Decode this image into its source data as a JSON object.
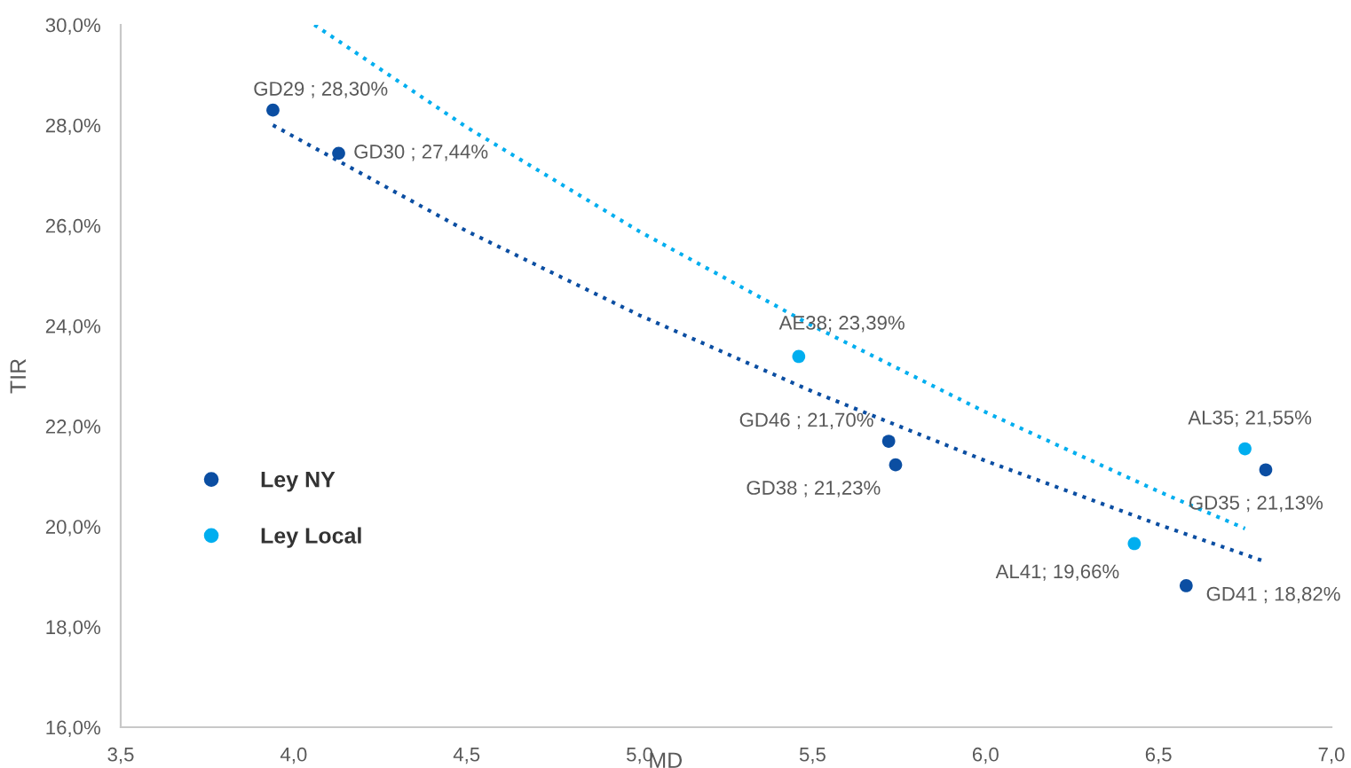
{
  "chart_data": {
    "type": "scatter",
    "xlabel": "MD",
    "ylabel": "TIR",
    "xlim": [
      3.5,
      7.0
    ],
    "ylim": [
      16,
      30
    ],
    "xticks": [
      {
        "value": 3.5,
        "label": "3,5"
      },
      {
        "value": 4.0,
        "label": "4,0"
      },
      {
        "value": 4.5,
        "label": "4,5"
      },
      {
        "value": 5.0,
        "label": "5,0"
      },
      {
        "value": 5.5,
        "label": "5,5"
      },
      {
        "value": 6.0,
        "label": "6,0"
      },
      {
        "value": 6.5,
        "label": "6,5"
      },
      {
        "value": 7.0,
        "label": "7,0"
      }
    ],
    "yticks": [
      {
        "value": 16,
        "label": "16,0%"
      },
      {
        "value": 18,
        "label": "18,0%"
      },
      {
        "value": 20,
        "label": "20,0%"
      },
      {
        "value": 22,
        "label": "22,0%"
      },
      {
        "value": 24,
        "label": "24,0%"
      },
      {
        "value": 26,
        "label": "26,0%"
      },
      {
        "value": 28,
        "label": "28,0%"
      },
      {
        "value": 30,
        "label": "30,0%"
      }
    ],
    "grid": false,
    "legend": "left",
    "series": [
      {
        "name": "Ley NY",
        "color": "#0b4ea2",
        "marker": "circle",
        "x": [
          3.94,
          4.13,
          5.72,
          5.74,
          6.81,
          6.58
        ],
        "values": [
          28.3,
          27.44,
          21.7,
          21.23,
          21.13,
          18.82
        ],
        "value_labels": [
          "GD29 ; 28,30%",
          "GD30 ; 27,44%",
          "GD46 ; 21,70%",
          "GD38 ; 21,23%",
          "GD35 ; 21,13%",
          "GD41 ; 18,82%"
        ]
      },
      {
        "name": "Ley Local",
        "color": "#00aeef",
        "marker": "circle",
        "x": [
          5.46,
          6.75,
          6.43
        ],
        "values": [
          23.39,
          21.55,
          19.66
        ],
        "value_labels": [
          "AE38; 23,39%",
          "AL35; 21,55%",
          "AL41; 19,66%"
        ]
      },
      {
        "type": "line",
        "color": "#0b4ea2",
        "line_style": "dotted",
        "marker": "none",
        "x": [
          3.94,
          4.5,
          5.0,
          5.5,
          6.0,
          6.5,
          6.8
        ],
        "values": [
          28.0,
          25.89,
          24.21,
          22.69,
          21.31,
          20.04,
          19.32
        ]
      },
      {
        "type": "line",
        "color": "#00aeef",
        "line_style": "dotted",
        "marker": "none",
        "x": [
          4.06,
          4.5,
          5.0,
          5.5,
          6.0,
          6.5,
          6.75
        ],
        "values": [
          30.0,
          27.96,
          25.88,
          24.0,
          22.28,
          20.7,
          19.96
        ]
      }
    ]
  }
}
